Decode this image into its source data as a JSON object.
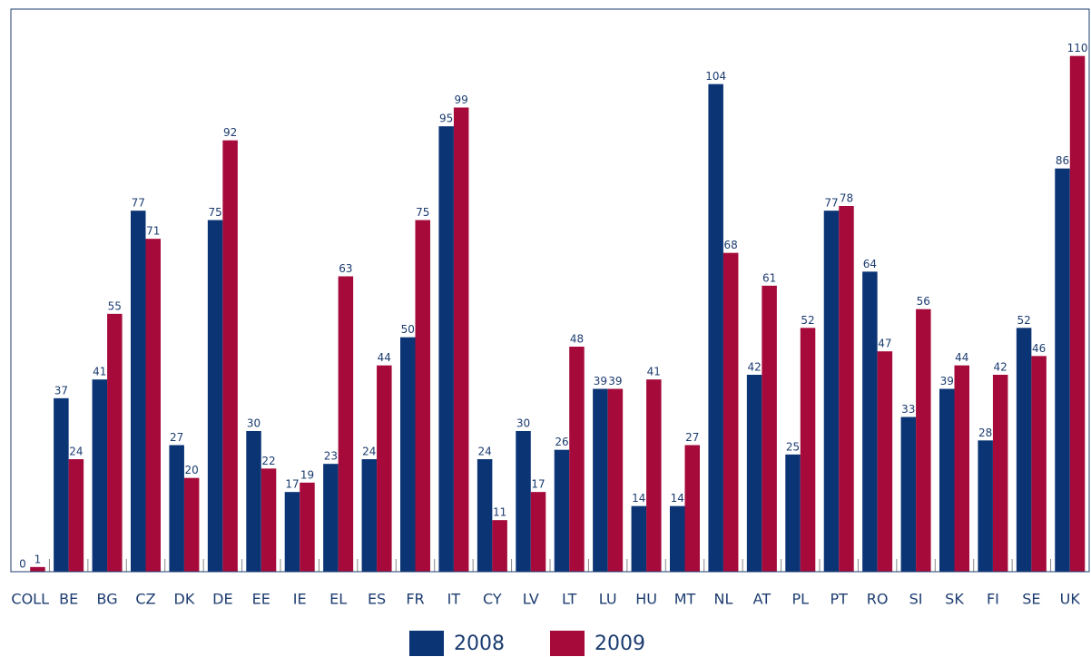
{
  "chart_data": {
    "type": "bar",
    "categories": [
      "COLL",
      "BE",
      "BG",
      "CZ",
      "DK",
      "DE",
      "EE",
      "IE",
      "EL",
      "ES",
      "FR",
      "IT",
      "CY",
      "LV",
      "LT",
      "LU",
      "HU",
      "MT",
      "NL",
      "AT",
      "PL",
      "PT",
      "RO",
      "SI",
      "SK",
      "FI",
      "SE",
      "UK"
    ],
    "series": [
      {
        "name": "2008",
        "color": "#0b3475",
        "values": [
          0,
          37,
          41,
          77,
          27,
          75,
          30,
          17,
          23,
          24,
          50,
          95,
          24,
          30,
          26,
          39,
          14,
          14,
          104,
          42,
          25,
          77,
          64,
          33,
          39,
          28,
          52,
          86
        ]
      },
      {
        "name": "2009",
        "color": "#a50a3a",
        "values": [
          1,
          24,
          55,
          71,
          20,
          92,
          22,
          19,
          63,
          44,
          75,
          99,
          11,
          17,
          48,
          39,
          41,
          27,
          68,
          61,
          52,
          78,
          47,
          56,
          44,
          42,
          46,
          110
        ]
      }
    ],
    "ylim": [
      0,
      120
    ]
  }
}
